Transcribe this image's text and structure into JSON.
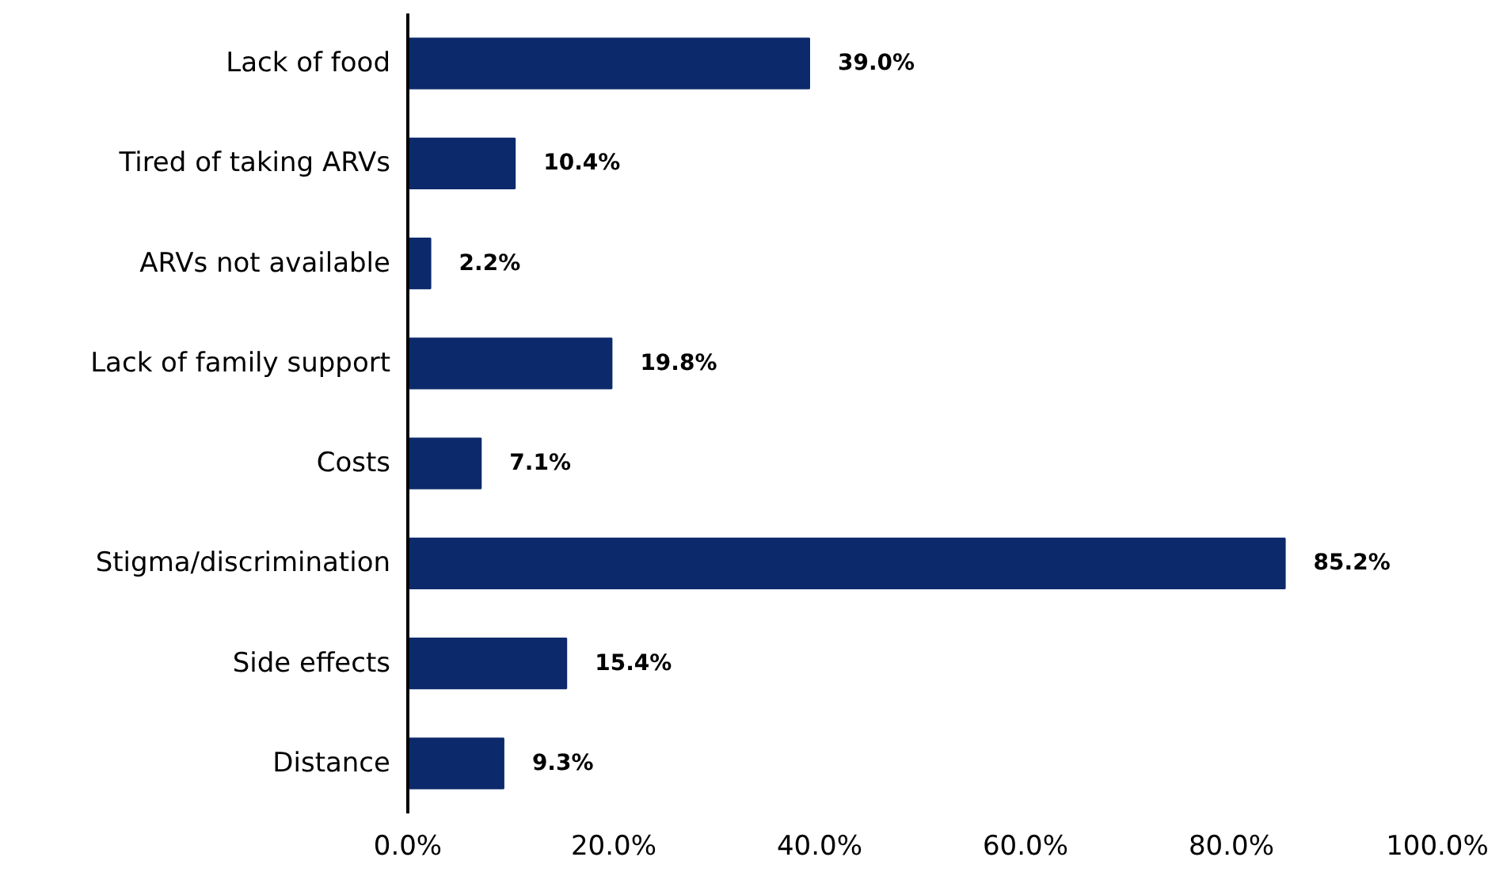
{
  "chart_data": {
    "type": "bar",
    "orientation": "horizontal",
    "categories": [
      "Lack of food",
      "Tired of taking ARVs",
      "ARVs not available",
      "Lack of family support",
      "Costs",
      "Stigma/discrimination",
      "Side effects",
      "Distance"
    ],
    "values": [
      39.0,
      10.4,
      2.2,
      19.8,
      7.1,
      85.2,
      15.4,
      9.3
    ],
    "value_labels": [
      "39.0%",
      "10.4%",
      "2.2%",
      "19.8%",
      "7.1%",
      "85.2%",
      "15.4%",
      "9.3%"
    ],
    "color": "#0c2a6b",
    "xlim": [
      0,
      100
    ],
    "xticks": [
      {
        "value": 0,
        "label": "0.0%"
      },
      {
        "value": 20,
        "label": "20.0%"
      },
      {
        "value": 40,
        "label": "40.0%"
      },
      {
        "value": 60,
        "label": "60.0%"
      },
      {
        "value": 80,
        "label": "80.0%"
      },
      {
        "value": 100,
        "label": "100.0%"
      }
    ],
    "grid": false
  }
}
